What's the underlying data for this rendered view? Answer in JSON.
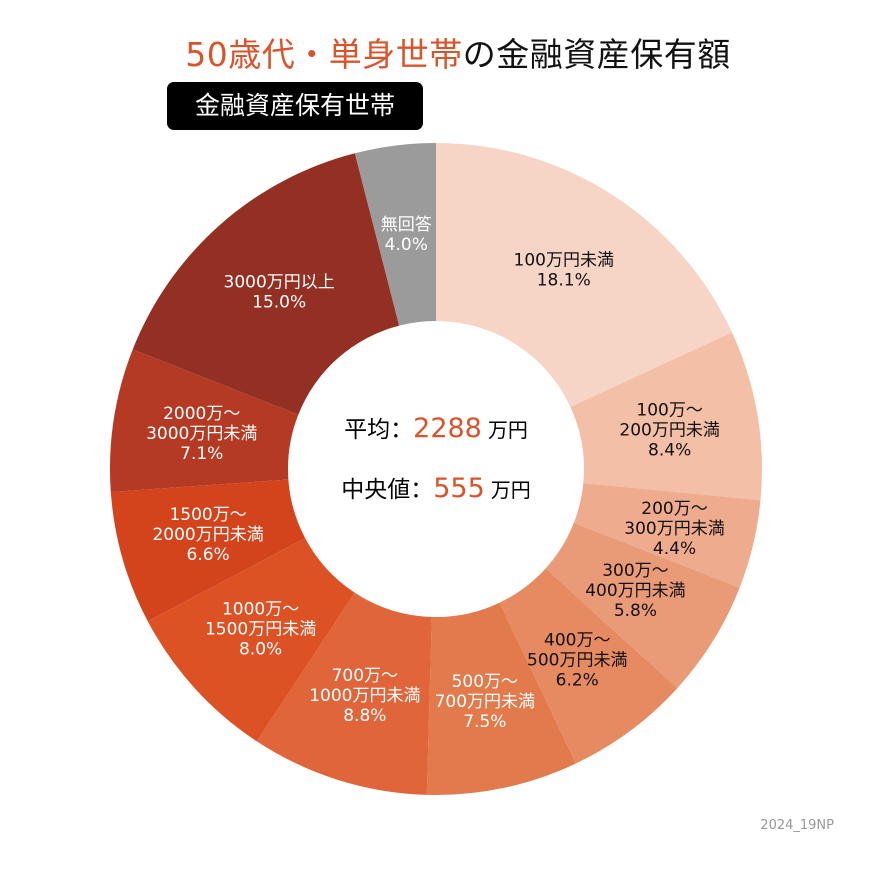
{
  "title": {
    "accent": "50歳代・単身世帯",
    "rest": "の金融資産保有額"
  },
  "badge": "金融資産保有世帯",
  "credit": "2024_19NP",
  "center": {
    "mean_label": "平均：",
    "mean_value": "2288",
    "mean_unit": "万円",
    "median_label": "中央値：",
    "median_value": "555",
    "median_unit": "万円",
    "accent_color": "#d9532b"
  },
  "chart_data": {
    "type": "pie",
    "donut": true,
    "start": "top, clockwise",
    "unit": "%",
    "categories": [
      "100万円未満",
      "100万～200万円未満",
      "200万～300万円未満",
      "300万～400万円未満",
      "400万～500万円未満",
      "500万～700万円未満",
      "700万～1000万円未満",
      "1000万～1500万円未満",
      "1500万～2000万円未満",
      "2000万～3000万円未満",
      "3000万円以上",
      "無回答"
    ],
    "label_lines": [
      [
        "100万円未満",
        "18.1%"
      ],
      [
        "100万～",
        "200万円未満",
        "8.4%"
      ],
      [
        "200万～",
        "300万円未満",
        "4.4%"
      ],
      [
        "300万～",
        "400万円未満",
        "5.8%"
      ],
      [
        "400万～",
        "500万円未満",
        "6.2%"
      ],
      [
        "500万～",
        "700万円未満",
        "7.5%"
      ],
      [
        "700万～",
        "1000万円未満",
        "8.8%"
      ],
      [
        "1000万～",
        "1500万円未満",
        "8.0%"
      ],
      [
        "1500万～",
        "2000万円未満",
        "6.6%"
      ],
      [
        "2000万～",
        "3000万円未満",
        "7.1%"
      ],
      [
        "3000万円以上",
        "15.0%"
      ],
      [
        "無回答",
        "4.0%"
      ]
    ],
    "values": [
      18.1,
      8.4,
      4.4,
      5.8,
      6.2,
      7.5,
      8.8,
      8.0,
      6.6,
      7.1,
      15.0,
      4.0
    ],
    "colors": [
      "#f6d5c7",
      "#f3bfa6",
      "#eeab8d",
      "#e99a77",
      "#e68a62",
      "#e27a4c",
      "#e0653a",
      "#dd5224",
      "#d4441c",
      "#b53a24",
      "#943023",
      "#9b9b9b"
    ],
    "label_colors": [
      "#111",
      "#111",
      "#111",
      "#111",
      "#111",
      "#fff",
      "#fff",
      "#fff",
      "#fff",
      "#fff",
      "#fff",
      "#fff"
    ]
  }
}
